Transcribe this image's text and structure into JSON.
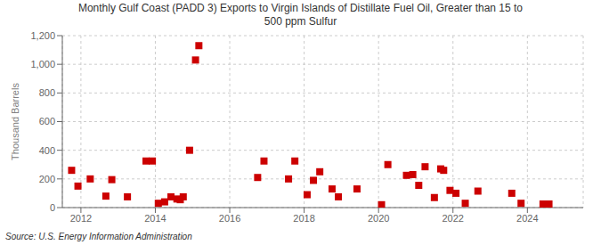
{
  "chart_data": {
    "type": "scatter",
    "title": "Monthly Gulf Coast (PADD 3) Exports to Virgin Islands of Distillate Fuel Oil, Greater than 15 to\n500 ppm Sulfur",
    "ylabel": "Thousand Barrels",
    "annotation": "Source: U.S. Energy Information Administration",
    "color": "#cc0000",
    "marker": "square",
    "grid": true,
    "xlim": [
      2011.5,
      2025.5
    ],
    "xticks": [
      2012,
      2014,
      2016,
      2018,
      2020,
      2022,
      2024
    ],
    "ylim": [
      0,
      1200
    ],
    "yticks": [
      0,
      200,
      400,
      600,
      800,
      {
        "value": 1000,
        "label": "1,000"
      },
      {
        "value": 1200,
        "label": "1,200"
      }
    ],
    "x": [
      2011.75,
      2011.92,
      2012.25,
      2012.67,
      2012.83,
      2013.25,
      2013.75,
      2013.92,
      2014.08,
      2014.25,
      2014.42,
      2014.58,
      2014.67,
      2014.75,
      2014.92,
      2015.08,
      2015.17,
      2016.75,
      2016.92,
      2017.58,
      2017.75,
      2018.08,
      2018.25,
      2018.42,
      2018.75,
      2018.92,
      2019.42,
      2020.08,
      2020.25,
      2020.75,
      2020.92,
      2021.08,
      2021.25,
      2021.5,
      2021.67,
      2021.75,
      2021.92,
      2022.08,
      2022.33,
      2022.67,
      2023.58,
      2023.83,
      2024.42,
      2024.58
    ],
    "values": [
      260,
      150,
      200,
      80,
      195,
      75,
      325,
      325,
      30,
      40,
      75,
      60,
      55,
      75,
      400,
      1030,
      1130,
      210,
      325,
      200,
      325,
      90,
      190,
      250,
      130,
      75,
      130,
      20,
      300,
      225,
      230,
      155,
      285,
      70,
      270,
      260,
      120,
      100,
      30,
      115,
      100,
      30,
      25,
      25
    ]
  }
}
